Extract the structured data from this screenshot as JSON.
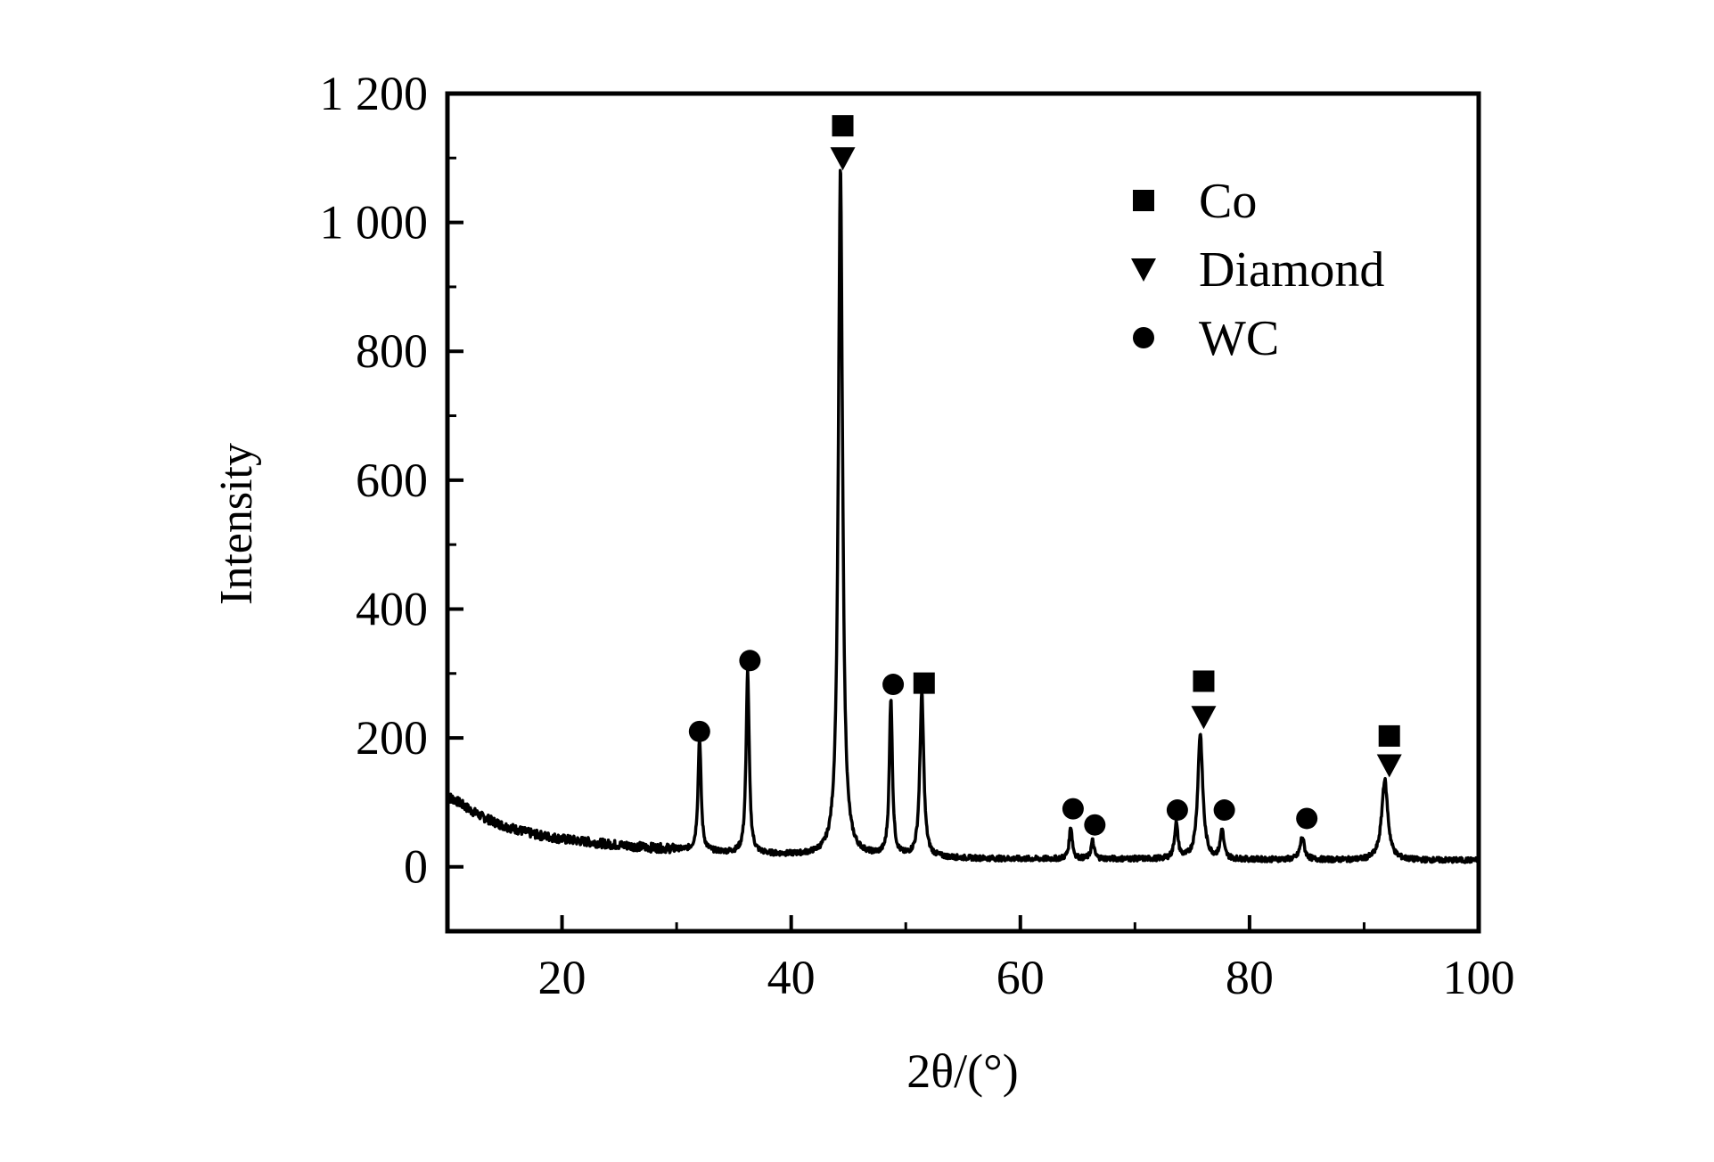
{
  "chart_data": {
    "type": "line",
    "title": "",
    "xlabel": "2θ/(°)",
    "ylabel": "Intensity",
    "xlim": [
      10,
      100
    ],
    "ylim": [
      -100,
      1200
    ],
    "xticks": [
      20,
      40,
      60,
      80,
      100
    ],
    "xtick_labels": [
      "20",
      "40",
      "60",
      "80",
      "100"
    ],
    "yticks": [
      0,
      200,
      400,
      600,
      800,
      1000,
      1200
    ],
    "ytick_labels": [
      "0",
      "200",
      "400",
      "600",
      "800",
      "1 000",
      "1 200"
    ],
    "grid": false,
    "legend_position": "top-right",
    "line_color": "#000000",
    "baseline": [
      [
        10,
        110
      ],
      [
        11,
        100
      ],
      [
        12,
        88
      ],
      [
        13,
        78
      ],
      [
        14,
        70
      ],
      [
        15,
        63
      ],
      [
        16,
        58
      ],
      [
        17,
        53
      ],
      [
        18,
        49
      ],
      [
        19,
        46
      ],
      [
        20,
        43
      ],
      [
        22,
        39
      ],
      [
        24,
        35
      ],
      [
        26,
        32
      ],
      [
        28,
        29
      ],
      [
        30,
        27
      ],
      [
        32,
        24
      ],
      [
        34,
        22
      ],
      [
        36,
        20
      ],
      [
        38,
        19
      ],
      [
        40,
        18
      ],
      [
        42,
        17
      ],
      [
        44,
        16
      ],
      [
        46,
        16
      ],
      [
        48,
        15
      ],
      [
        50,
        14
      ],
      [
        52,
        14
      ],
      [
        55,
        13
      ],
      [
        60,
        12
      ],
      [
        65,
        12
      ],
      [
        70,
        12
      ],
      [
        75,
        11
      ],
      [
        80,
        11
      ],
      [
        85,
        11
      ],
      [
        90,
        10
      ],
      [
        95,
        10
      ],
      [
        100,
        10
      ]
    ],
    "peaks": [
      {
        "x": 32.0,
        "height": 175,
        "width": 0.16
      },
      {
        "x": 36.2,
        "height": 285,
        "width": 0.16
      },
      {
        "x": 44.3,
        "height": 1070,
        "width": 0.22
      },
      {
        "x": 48.7,
        "height": 245,
        "width": 0.16
      },
      {
        "x": 51.4,
        "height": 255,
        "width": 0.2
      },
      {
        "x": 64.4,
        "height": 50,
        "width": 0.16
      },
      {
        "x": 66.3,
        "height": 28,
        "width": 0.16
      },
      {
        "x": 73.6,
        "height": 55,
        "width": 0.18
      },
      {
        "x": 75.7,
        "height": 195,
        "width": 0.26
      },
      {
        "x": 77.6,
        "height": 45,
        "width": 0.18
      },
      {
        "x": 84.6,
        "height": 35,
        "width": 0.22
      },
      {
        "x": 91.8,
        "height": 125,
        "width": 0.32
      }
    ],
    "series": [
      {
        "name": "Co",
        "marker": "square",
        "points": [
          [
            44.5,
            1150
          ],
          [
            51.6,
            285
          ],
          [
            76.0,
            288
          ],
          [
            92.2,
            203
          ]
        ]
      },
      {
        "name": "Diamond",
        "marker": "triangle-down",
        "points": [
          [
            44.5,
            1100
          ],
          [
            76.0,
            233
          ],
          [
            92.2,
            158
          ]
        ]
      },
      {
        "name": "WC",
        "marker": "circle",
        "points": [
          [
            32.0,
            210
          ],
          [
            36.4,
            320
          ],
          [
            48.9,
            283
          ],
          [
            64.6,
            90
          ],
          [
            66.5,
            65
          ],
          [
            73.7,
            88
          ],
          [
            77.8,
            88
          ],
          [
            85.0,
            75
          ]
        ]
      }
    ]
  }
}
